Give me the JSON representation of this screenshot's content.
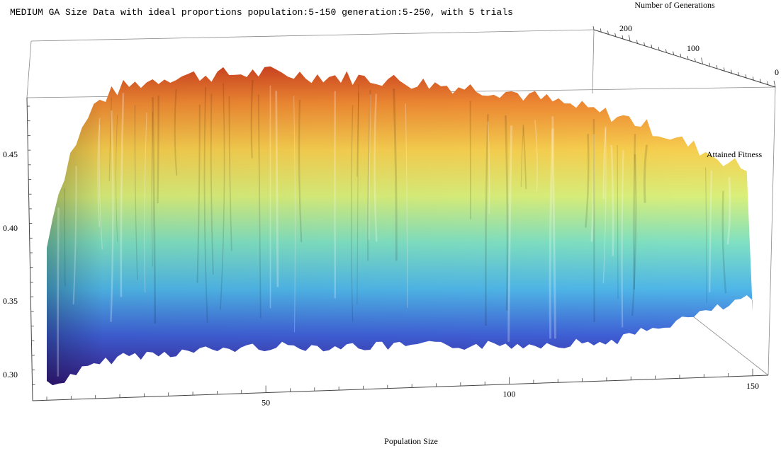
{
  "chart_data": {
    "type": "surface3d",
    "title": "MEDIUM GA Size Data with ideal proportions population:5-150 generation:5-250, with 5 trials",
    "xlabel": "Population Size",
    "ylabel": "Number of Generations",
    "zlabel": "Attained Fitness",
    "x_ticks": [
      "50",
      "100",
      "150"
    ],
    "y_ticks": [
      "200",
      "100",
      "0"
    ],
    "z_ticks": [
      "0.45",
      "0.40",
      "0.35",
      "0.30"
    ],
    "x_range": [
      5,
      150
    ],
    "y_range": [
      5,
      250
    ],
    "z_range": [
      0.29,
      0.5
    ],
    "colormap": [
      "#3a1f8f",
      "#3f5fd6",
      "#4fb6e8",
      "#7fe0c2",
      "#d9ef7a",
      "#f7cf4f",
      "#f08a33",
      "#c8321c"
    ],
    "surface_samples": {
      "population": [
        5,
        10,
        15,
        20,
        30,
        50,
        75,
        100,
        125,
        150
      ],
      "fitness_at_generation_5": [
        0.294,
        0.305,
        0.31,
        0.316,
        0.318,
        0.322,
        0.322,
        0.323,
        0.325,
        0.33
      ],
      "fitness_at_generation_250": [
        0.39,
        0.44,
        0.47,
        0.48,
        0.488,
        0.492,
        0.49,
        0.485,
        0.47,
        0.44
      ]
    }
  }
}
